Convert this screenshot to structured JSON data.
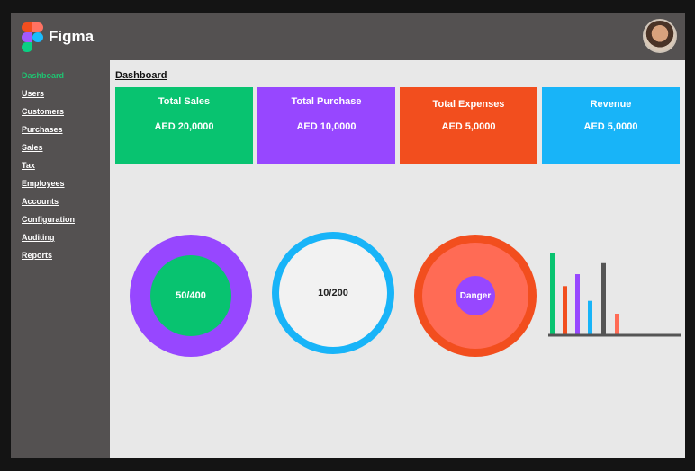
{
  "app": {
    "name": "Figma"
  },
  "sidebar": {
    "items": [
      {
        "label": "Dashboard",
        "active": true
      },
      {
        "label": "Users"
      },
      {
        "label": "Customers"
      },
      {
        "label": "Purchases"
      },
      {
        "label": "Sales"
      },
      {
        "label": "Tax"
      },
      {
        "label": "Employees"
      },
      {
        "label": "Accounts"
      },
      {
        "label": "Configuration"
      },
      {
        "label": "Auditing"
      },
      {
        "label": "Reports"
      }
    ]
  },
  "main": {
    "title": "Dashboard",
    "cards": [
      {
        "title": "Total Sales",
        "value": "AED 20,0000",
        "color": "#08c370"
      },
      {
        "title": "Total Purchase",
        "value": "AED 10,0000",
        "color": "#9747ff"
      },
      {
        "title": "Total Expenses",
        "value": "AED 5,0000",
        "color": "#f24e1e"
      },
      {
        "title": "Revenue",
        "value": "AED 5,0000",
        "color": "#18b4f8"
      }
    ],
    "widgets": [
      {
        "label": "50/400",
        "outer_color": "#9747ff",
        "inner_color": "#08c370"
      },
      {
        "label": "10/200",
        "ring_color": "#18b4f8",
        "inner_color": "#f2f2f2"
      },
      {
        "label": "Danger",
        "outer_color": "#f24e1e",
        "inner_color": "#ff6b55",
        "center_color": "#9747ff"
      }
    ]
  },
  "chart_data": {
    "type": "bar",
    "values": [
      88,
      52,
      65,
      36,
      77,
      22
    ],
    "colors": [
      "#08c370",
      "#f24e1e",
      "#9747ff",
      "#18b4f8",
      "#555555",
      "#ff6b55"
    ]
  }
}
